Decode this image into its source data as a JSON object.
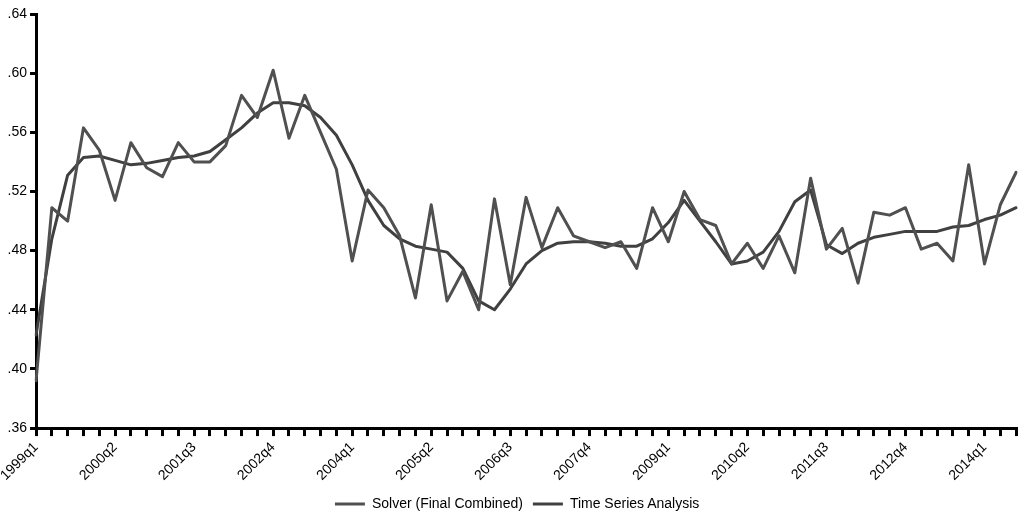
{
  "chart_data": {
    "type": "line",
    "categories": [
      "1999q1",
      null,
      null,
      null,
      null,
      "2000q2",
      null,
      null,
      null,
      null,
      "2001q3",
      null,
      null,
      null,
      null,
      "2002q4",
      null,
      null,
      null,
      null,
      "2004q1",
      null,
      null,
      null,
      null,
      "2005q2",
      null,
      null,
      null,
      null,
      "2006q3",
      null,
      null,
      null,
      null,
      "2007q4",
      null,
      null,
      null,
      null,
      "2009q1",
      null,
      null,
      null,
      null,
      "2010q2",
      null,
      null,
      null,
      null,
      "2011q3",
      null,
      null,
      null,
      null,
      "2012q4",
      null,
      null,
      null,
      null,
      "2014q1",
      null,
      null
    ],
    "series": [
      {
        "name": "Solver (Final Combined)",
        "color": "#505050",
        "values": [
          0.392,
          0.509,
          0.5,
          0.563,
          0.548,
          0.514,
          0.553,
          0.536,
          0.53,
          0.553,
          0.54,
          0.54,
          0.551,
          0.585,
          0.57,
          0.602,
          0.556,
          0.585,
          0.56,
          0.535,
          0.473,
          0.521,
          0.509,
          0.49,
          0.448,
          0.511,
          0.446,
          0.466,
          0.44,
          0.515,
          0.457,
          0.516,
          0.482,
          0.509,
          0.49,
          0.486,
          0.482,
          0.486,
          0.468,
          0.509,
          0.486,
          0.52,
          0.501,
          0.497,
          0.471,
          0.485,
          0.468,
          0.49,
          0.465,
          0.529,
          0.481,
          0.495,
          0.458,
          0.506,
          0.504,
          0.509,
          0.481,
          0.485,
          0.473,
          0.538,
          0.471,
          0.511,
          0.533
        ]
      },
      {
        "name": "Time Series Analysis",
        "color": "#404040",
        "values": [
          0.423,
          0.488,
          0.531,
          0.543,
          0.544,
          0.541,
          0.538,
          0.539,
          0.541,
          0.543,
          0.544,
          0.547,
          0.555,
          0.563,
          0.573,
          0.58,
          0.58,
          0.578,
          0.57,
          0.558,
          0.538,
          0.514,
          0.497,
          0.488,
          0.483,
          0.481,
          0.479,
          0.468,
          0.446,
          0.44,
          0.454,
          0.471,
          0.48,
          0.485,
          0.486,
          0.486,
          0.485,
          0.483,
          0.483,
          0.488,
          0.499,
          0.514,
          0.5,
          0.486,
          0.471,
          0.473,
          0.479,
          0.493,
          0.513,
          0.521,
          0.484,
          0.478,
          0.485,
          0.489,
          0.491,
          0.493,
          0.493,
          0.493,
          0.496,
          0.497,
          0.501,
          0.504,
          0.509
        ]
      }
    ],
    "ylim": [
      0.36,
      0.64
    ],
    "yticks": [
      {
        "value": 0.36,
        "label": ".36"
      },
      {
        "value": 0.4,
        "label": ".40"
      },
      {
        "value": 0.44,
        "label": ".44"
      },
      {
        "value": 0.48,
        "label": ".48"
      },
      {
        "value": 0.52,
        "label": ".52"
      },
      {
        "value": 0.56,
        "label": ".56"
      },
      {
        "value": 0.6,
        "label": ".60"
      },
      {
        "value": 0.64,
        "label": ".64"
      }
    ],
    "grid": false,
    "legend": "bottom",
    "marker": "none",
    "line_style": "solid"
  }
}
